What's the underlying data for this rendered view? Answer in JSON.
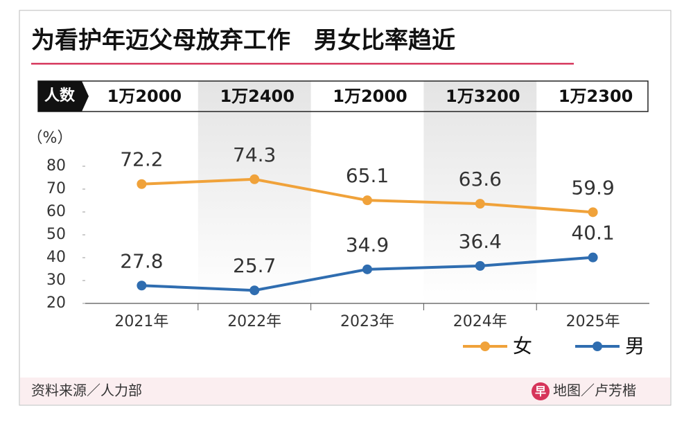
{
  "chart_data": {
    "type": "line",
    "title": "为看护年迈父母放弃工作　男女比率趋近",
    "headcount": {
      "label": "人数",
      "values": [
        "1万2000",
        "1万2400",
        "1万2000",
        "1万3200",
        "1万2300"
      ]
    },
    "y_label": "（%）",
    "categories": [
      "2021年",
      "2022年",
      "2023年",
      "2024年",
      "2025年"
    ],
    "series": [
      {
        "name": "女",
        "color": "#f0a23a",
        "values": [
          72.2,
          74.3,
          65.1,
          63.6,
          59.9
        ]
      },
      {
        "name": "男",
        "color": "#2f6db0",
        "values": [
          27.8,
          25.7,
          34.9,
          36.4,
          40.1
        ]
      }
    ],
    "ylim": [
      20,
      100
    ],
    "yticks": [
      20,
      30,
      40,
      50,
      60,
      70,
      80
    ],
    "legend": "bottom-right",
    "source": "资料来源／人力部",
    "logo": "早",
    "credit": "地图／卢芳楷"
  }
}
